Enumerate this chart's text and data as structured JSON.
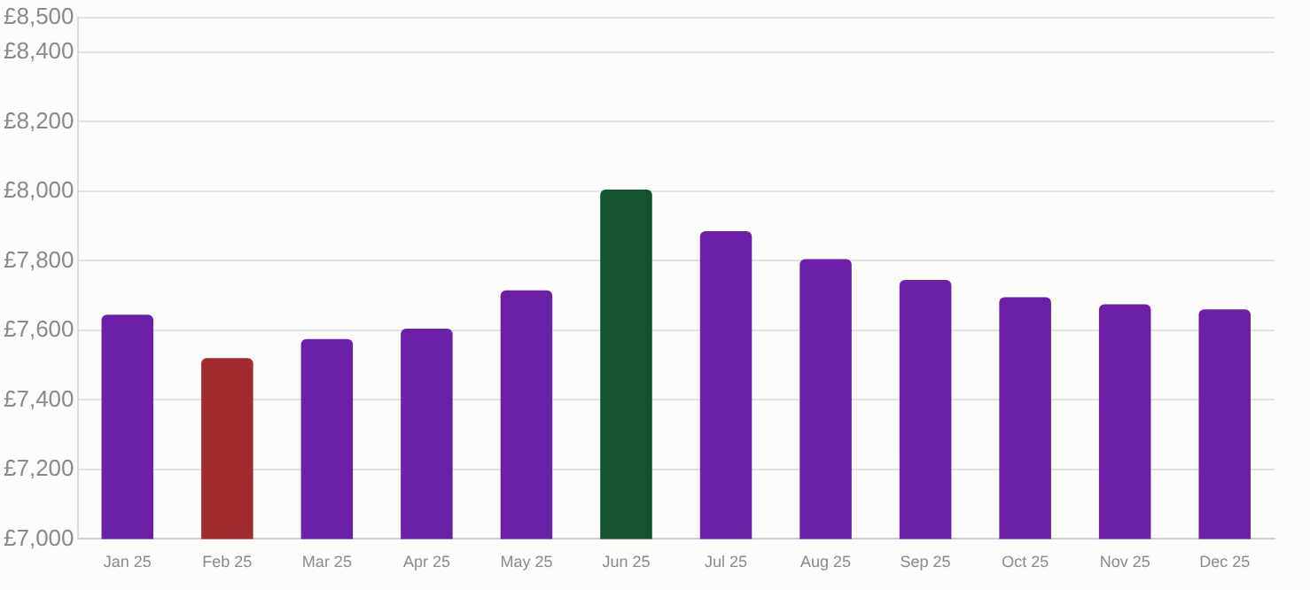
{
  "chart_data": {
    "type": "bar",
    "categories": [
      "Jan 25",
      "Feb 25",
      "Mar 25",
      "Apr 25",
      "May 25",
      "Jun 25",
      "Jul 25",
      "Aug 25",
      "Sep 25",
      "Oct 25",
      "Nov 25",
      "Dec 25"
    ],
    "values": [
      7645,
      7520,
      7575,
      7605,
      7715,
      8005,
      7885,
      7805,
      7745,
      7695,
      7675,
      7660
    ],
    "colors": [
      "#6a21a8",
      "#a22b2e",
      "#6a21a8",
      "#6a21a8",
      "#6a21a8",
      "#15522f",
      "#6a21a8",
      "#6a21a8",
      "#6a21a8",
      "#6a21a8",
      "#6a21a8",
      "#6a21a8"
    ],
    "ylim": [
      7000,
      8500
    ],
    "yticks": [
      {
        "value": 7000,
        "label": "£7,000"
      },
      {
        "value": 7200,
        "label": "£7,200"
      },
      {
        "value": 7400,
        "label": "£7,400"
      },
      {
        "value": 7600,
        "label": "£7,600"
      },
      {
        "value": 7800,
        "label": "£7,800"
      },
      {
        "value": 8000,
        "label": "£8,000"
      },
      {
        "value": 8200,
        "label": "£8,200"
      },
      {
        "value": 8400,
        "label": "£8,400"
      },
      {
        "value": 8500,
        "label": "£8,500"
      }
    ],
    "grid": "y",
    "legend": false
  }
}
